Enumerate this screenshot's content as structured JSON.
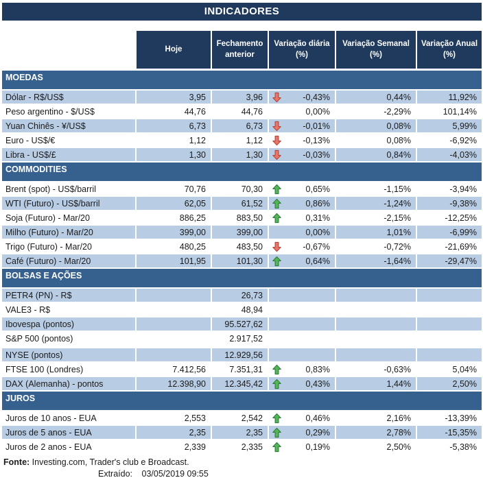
{
  "title": "INDICADORES",
  "columns": [
    "Hoje",
    "Fechamento anterior",
    "Variação diária (%)",
    "Variação Semanal (%)",
    "Variação Anual (%)"
  ],
  "sections": [
    {
      "name": "MOEDAS",
      "rows": [
        {
          "label": "Dólar - R$/US$",
          "hoje": "3,95",
          "fechamento": "3,96",
          "arrow": "down",
          "var_diaria": "-0,43%",
          "var_semanal": "0,44%",
          "var_anual": "11,92%"
        },
        {
          "label": "Peso argentino - $/US$",
          "hoje": "44,76",
          "fechamento": "44,76",
          "arrow": null,
          "var_diaria": "0,00%",
          "var_semanal": "-2,29%",
          "var_anual": "101,14%"
        },
        {
          "label": "Yuan Chinês - ¥/US$",
          "hoje": "6,73",
          "fechamento": "6,73",
          "arrow": "down",
          "var_diaria": "-0,01%",
          "var_semanal": "0,08%",
          "var_anual": "5,99%"
        },
        {
          "label": "Euro - US$/€",
          "hoje": "1,12",
          "fechamento": "1,12",
          "arrow": "down",
          "var_diaria": "-0,13%",
          "var_semanal": "0,08%",
          "var_anual": "-6,92%"
        },
        {
          "label": "Libra - US$/£",
          "hoje": "1,30",
          "fechamento": "1,30",
          "arrow": "down",
          "var_diaria": "-0,03%",
          "var_semanal": "0,84%",
          "var_anual": "-4,03%"
        }
      ]
    },
    {
      "name": "COMMODITIES",
      "rows": [
        {
          "label": "Brent (spot) - US$/barril",
          "hoje": "70,76",
          "fechamento": "70,30",
          "arrow": "up",
          "var_diaria": "0,65%",
          "var_semanal": "-1,15%",
          "var_anual": "-3,94%"
        },
        {
          "label": "WTI (Futuro) - US$/barril",
          "hoje": "62,05",
          "fechamento": "61,52",
          "arrow": "up",
          "var_diaria": "0,86%",
          "var_semanal": "-1,24%",
          "var_anual": "-9,38%"
        },
        {
          "label": "Soja (Futuro) - Mar/20",
          "hoje": "886,25",
          "fechamento": "883,50",
          "arrow": "up",
          "var_diaria": "0,31%",
          "var_semanal": "-2,15%",
          "var_anual": "-12,25%"
        },
        {
          "label": "Milho (Futuro) - Mar/20",
          "hoje": "399,00",
          "fechamento": "399,00",
          "arrow": null,
          "var_diaria": "0,00%",
          "var_semanal": "1,01%",
          "var_anual": "-6,99%"
        },
        {
          "label": "Trigo (Futuro) - Mar/20",
          "hoje": "480,25",
          "fechamento": "483,50",
          "arrow": "down",
          "var_diaria": "-0,67%",
          "var_semanal": "-0,72%",
          "var_anual": "-21,69%"
        },
        {
          "label": "Café (Futuro) - Mar/20",
          "hoje": "101,95",
          "fechamento": "101,30",
          "arrow": "up",
          "var_diaria": "0,64%",
          "var_semanal": "-1,64%",
          "var_anual": "-29,47%"
        }
      ]
    },
    {
      "name": "BOLSAS E AÇÕES",
      "rows": [
        {
          "label": "PETR4 (PN) - R$",
          "hoje": "",
          "fechamento": "26,73",
          "arrow": null,
          "var_diaria": "",
          "var_semanal": "",
          "var_anual": ""
        },
        {
          "label": "VALE3 - R$",
          "hoje": "",
          "fechamento": "48,94",
          "arrow": null,
          "var_diaria": "",
          "var_semanal": "",
          "var_anual": ""
        },
        {
          "label": "Ibovespa (pontos)",
          "hoje": "",
          "fechamento": "95.527,62",
          "arrow": null,
          "var_diaria": "",
          "var_semanal": "",
          "var_anual": ""
        },
        {
          "label": "S&P 500 (pontos)",
          "hoje": "",
          "fechamento": "2.917,52",
          "arrow": null,
          "var_diaria": "",
          "var_semanal": "",
          "var_anual": ""
        },
        {
          "label": "NYSE (pontos)",
          "hoje": "",
          "fechamento": "12.929,56",
          "arrow": null,
          "var_diaria": "",
          "var_semanal": "",
          "var_anual": "",
          "gap_before": true
        },
        {
          "label": "FTSE 100 (Londres)",
          "hoje": "7.412,56",
          "fechamento": "7.351,31",
          "arrow": "up",
          "var_diaria": "0,83%",
          "var_semanal": "-0,63%",
          "var_anual": "5,04%"
        },
        {
          "label": "DAX (Alemanha) - pontos",
          "hoje": "12.398,90",
          "fechamento": "12.345,42",
          "arrow": "up",
          "var_diaria": "0,43%",
          "var_semanal": "1,44%",
          "var_anual": "2,50%"
        }
      ]
    },
    {
      "name": "JUROS",
      "rows": [
        {
          "label": "Juros de 10 anos - EUA",
          "hoje": "2,553",
          "fechamento": "2,542",
          "arrow": "up",
          "var_diaria": "0,46%",
          "var_semanal": "2,16%",
          "var_anual": "-13,39%"
        },
        {
          "label": "Juros de 5 anos - EUA",
          "hoje": "2,35",
          "fechamento": "2,35",
          "arrow": "up",
          "var_diaria": "0,29%",
          "var_semanal": "2,78%",
          "var_anual": "-15,35%"
        },
        {
          "label": "Juros de 2 anos - EUA",
          "hoje": "2,339",
          "fechamento": "2,335",
          "arrow": "up",
          "var_diaria": "0,19%",
          "var_semanal": "2,50%",
          "var_anual": "-5,38%"
        }
      ]
    }
  ],
  "footer": {
    "fonte_label": "Fonte:",
    "fonte_text": "Investing.com, Trader's club e Broadcast.",
    "extraido_label": "Extraído:",
    "extraido_value": "03/05/2019 09:55"
  },
  "colors": {
    "navy_header": "#1F3A5C",
    "steel_section": "#36618E",
    "row_shade_blue": "#B8CCE4",
    "arrow_up_fill": "#53B557",
    "arrow_up_stroke": "#2F7D3B",
    "arrow_down_fill": "#E8756A",
    "arrow_down_stroke": "#B5473B"
  }
}
